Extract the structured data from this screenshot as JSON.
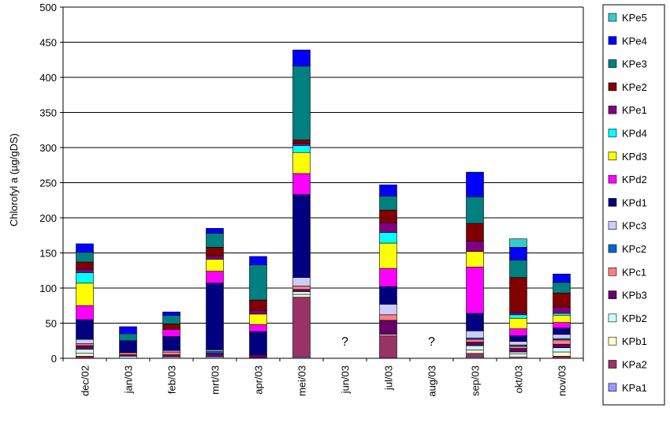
{
  "chart_data": {
    "type": "bar",
    "stacked": true,
    "ylabel": "Chlorofyl a (µg/gDS)",
    "xlabel": "",
    "ylim": [
      0,
      500
    ],
    "yticks": [
      0,
      50,
      100,
      150,
      200,
      250,
      300,
      350,
      400,
      450,
      500
    ],
    "grid": true,
    "legend_position": "right",
    "categories": [
      "dec/02",
      "jan/03",
      "feb/03",
      "mrt/03",
      "apr/03",
      "mei/03",
      "jun/03",
      "jul/03",
      "aug/03",
      "sep/03",
      "okt/03",
      "nov/03"
    ],
    "missing_marker": "?",
    "missing_categories": [
      "jun/03",
      "aug/03"
    ],
    "series": [
      {
        "name": "KPa1",
        "color": "#9999ff",
        "values": [
          0,
          0,
          0,
          0,
          0,
          2,
          null,
          0,
          null,
          2,
          2,
          0
        ]
      },
      {
        "name": "KPa2",
        "color": "#993366",
        "values": [
          3,
          0,
          0,
          0,
          0,
          85,
          null,
          32,
          null,
          5,
          0,
          3
        ]
      },
      {
        "name": "KPb1",
        "color": "#ffffcc",
        "values": [
          4,
          0,
          0,
          0,
          0,
          4,
          null,
          2,
          null,
          5,
          4,
          6
        ]
      },
      {
        "name": "KPb2",
        "color": "#ccffff",
        "values": [
          6,
          3,
          2,
          2,
          0,
          4,
          null,
          0,
          null,
          6,
          3,
          6
        ]
      },
      {
        "name": "KPb3",
        "color": "#660066",
        "values": [
          5,
          2,
          3,
          5,
          5,
          3,
          null,
          20,
          null,
          5,
          5,
          5
        ]
      },
      {
        "name": "KPc1",
        "color": "#ff8080",
        "values": [
          3,
          3,
          4,
          0,
          0,
          5,
          null,
          8,
          null,
          4,
          3,
          6
        ]
      },
      {
        "name": "KPc2",
        "color": "#0066cc",
        "values": [
          0,
          0,
          0,
          3,
          0,
          0,
          null,
          0,
          null,
          2,
          2,
          2
        ]
      },
      {
        "name": "KPc3",
        "color": "#ccccff",
        "values": [
          6,
          0,
          2,
          2,
          0,
          12,
          null,
          15,
          null,
          10,
          5,
          6
        ]
      },
      {
        "name": "KPd1",
        "color": "#000080",
        "values": [
          28,
          17,
          20,
          95,
          33,
          118,
          null,
          25,
          null,
          25,
          8,
          9
        ]
      },
      {
        "name": "KPd2",
        "color": "#ff00ff",
        "values": [
          20,
          0,
          10,
          17,
          10,
          30,
          null,
          26,
          null,
          66,
          10,
          8
        ]
      },
      {
        "name": "KPd3",
        "color": "#ffff00",
        "values": [
          32,
          0,
          0,
          17,
          15,
          30,
          null,
          36,
          null,
          22,
          15,
          10
        ]
      },
      {
        "name": "KPd4",
        "color": "#00ffff",
        "values": [
          15,
          0,
          0,
          0,
          0,
          10,
          null,
          15,
          null,
          0,
          5,
          3
        ]
      },
      {
        "name": "KPe1",
        "color": "#800080",
        "values": [
          5,
          0,
          0,
          5,
          5,
          3,
          null,
          14,
          null,
          15,
          3,
          9
        ]
      },
      {
        "name": "KPe2",
        "color": "#800000",
        "values": [
          10,
          0,
          8,
          12,
          15,
          5,
          null,
          18,
          null,
          25,
          50,
          20
        ]
      },
      {
        "name": "KPe3",
        "color": "#008080",
        "values": [
          14,
          10,
          12,
          20,
          50,
          105,
          null,
          20,
          null,
          38,
          25,
          15
        ]
      },
      {
        "name": "KPe4",
        "color": "#0000ff",
        "values": [
          12,
          10,
          5,
          7,
          12,
          23,
          null,
          16,
          null,
          35,
          18,
          12
        ]
      },
      {
        "name": "KPe5",
        "color": "#33cccc",
        "values": [
          0,
          0,
          0,
          0,
          0,
          0,
          null,
          0,
          null,
          0,
          12,
          0
        ]
      }
    ]
  }
}
